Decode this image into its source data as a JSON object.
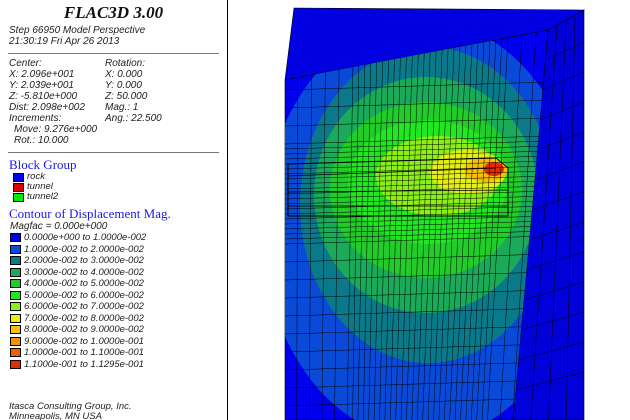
{
  "app": {
    "title": "FLAC3D 3.00"
  },
  "header": {
    "step_line": "Step 66950  Model Perspective",
    "date_line": "21:30:19 Fri Apr 26 2013"
  },
  "view": {
    "center_label": "Center:",
    "rotation_label": "Rotation:",
    "cx": "X: 2.096e+001",
    "cy": "Y: 2.039e+001",
    "cz": "Z: -5.810e+000",
    "rx": "X:   0.000",
    "ry": "Y:   0.000",
    "rz": "Z:  50.000",
    "dist": "Dist: 2.098e+002",
    "mag": "Mag.:      1",
    "increments_label": "Increments:",
    "ang": "Ang.:  22.500",
    "move": "Move: 9.276e+000",
    "rot": "Rot.:  10.000"
  },
  "block_group": {
    "title": "Block Group",
    "items": [
      {
        "label": "rock",
        "color": "#0000ee"
      },
      {
        "label": "tunnel",
        "color": "#dd0000"
      },
      {
        "label": "tunnel2",
        "color": "#00ee00"
      }
    ]
  },
  "contour": {
    "title": "Contour of Displacement Mag.",
    "magfac": "Magfac =  0.000e+000",
    "ranges": [
      {
        "label": "0.0000e+000 to  1.0000e-002",
        "color": "#0000f0"
      },
      {
        "label": "1.0000e-002 to  2.0000e-002",
        "color": "#0a4ad8"
      },
      {
        "label": "2.0000e-002 to  3.0000e-002",
        "color": "#0a7a8a"
      },
      {
        "label": "3.0000e-002 to  4.0000e-002",
        "color": "#1aaa5a"
      },
      {
        "label": "4.0000e-002 to  5.0000e-002",
        "color": "#22cc2a"
      },
      {
        "label": "5.0000e-002 to  6.0000e-002",
        "color": "#22e822"
      },
      {
        "label": "6.0000e-002 to  7.0000e-002",
        "color": "#8cf018"
      },
      {
        "label": "7.0000e-002 to  8.0000e-002",
        "color": "#e4f010"
      },
      {
        "label": "8.0000e-002 to  9.0000e-002",
        "color": "#f8c000"
      },
      {
        "label": "9.0000e-002 to  1.0000e-001",
        "color": "#f89000"
      },
      {
        "label": "1.0000e-001 to  1.1000e-001",
        "color": "#f06000"
      },
      {
        "label": "1.1000e-001 to  1.1295e-001",
        "color": "#e82800"
      }
    ]
  },
  "footer": {
    "company": "Itasca Consulting Group, Inc.",
    "location": "Minneapolis, MN  USA"
  }
}
